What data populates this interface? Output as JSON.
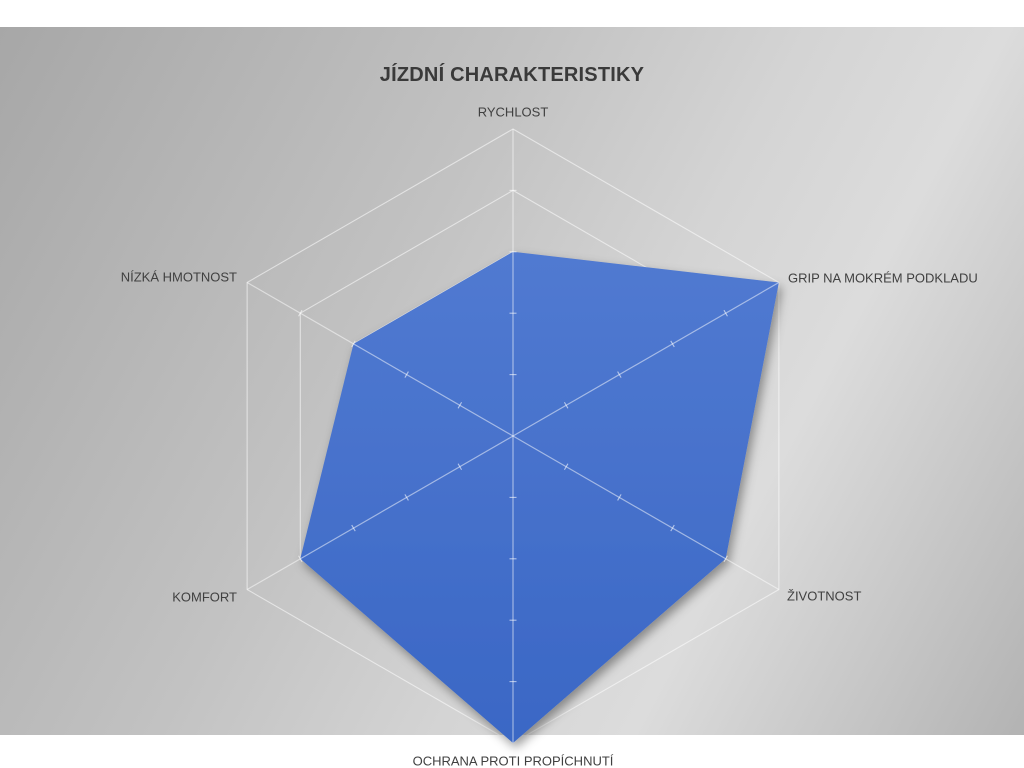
{
  "chart_data": {
    "type": "radar",
    "title": "JÍZDNÍ CHARAKTERISTIKY",
    "categories": [
      "RYCHLOST",
      "GRIP NA MOKRÉM PODKLADU",
      "ŽIVOTNOST",
      "OCHRANA PROTI PROPÍCHNUTÍ",
      "KOMFORT",
      "NÍZKÁ HMOTNOST"
    ],
    "series": [
      {
        "name": "",
        "values": [
          3,
          5,
          4,
          5,
          4,
          3
        ]
      }
    ],
    "scale": {
      "min": 0,
      "max": 5,
      "step": 1
    },
    "gridlines": true,
    "grid_levels": 5,
    "legend": false,
    "colors": {
      "series_fill_top": "#517ad1",
      "series_fill_bottom": "#3a67c5",
      "grid_line": "#ffffff",
      "title_text": "#3a3a3a",
      "label_text": "#404040",
      "background_dark": "#a7a7a7",
      "background_light": "#dcdcdc"
    }
  }
}
